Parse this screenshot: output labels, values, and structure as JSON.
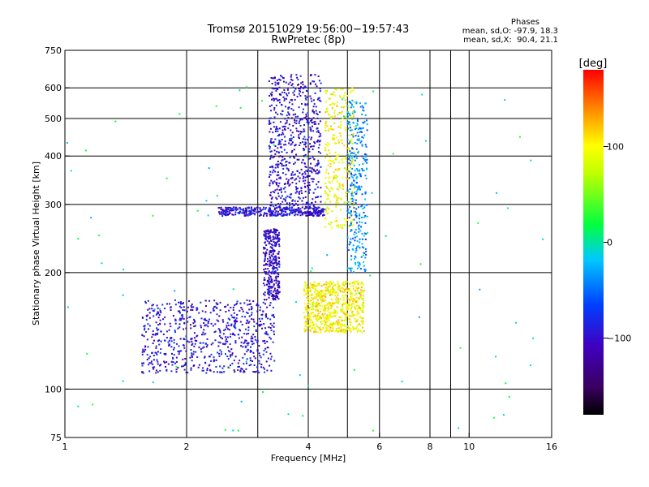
{
  "chart_data": {
    "type": "scatter",
    "title": "Tromsø 20151029 19:56:00−19:57:43",
    "subtitle": "RwPretec (8p)",
    "xlabel": "Frequency [MHz]",
    "ylabel": "Stationary phase Virtual Height [km]",
    "x_scale": "log",
    "y_scale": "log",
    "xlim": [
      1,
      16
    ],
    "ylim": [
      75,
      750
    ],
    "x_ticks": [
      1,
      2,
      4,
      6,
      8,
      10,
      16
    ],
    "x_tick_labels": [
      "1",
      "2",
      "4",
      "6",
      "8",
      "10",
      "16"
    ],
    "x_grid": [
      1,
      2,
      3,
      4,
      5,
      6,
      8,
      9,
      10
    ],
    "y_ticks": [
      75,
      100,
      200,
      300,
      400,
      500,
      600,
      750
    ],
    "y_tick_labels": [
      "75",
      "100",
      "200",
      "300",
      "400",
      "500",
      "600",
      "750"
    ],
    "y_grid": [
      100,
      200,
      300,
      400,
      500,
      600
    ],
    "grid": true,
    "legend_title": "Phases",
    "legend_placement": "top-right",
    "phase_o": "mean, sd,O: -97.9, 18.3",
    "phase_x": "mean, sd,X:  90.4, 21.1",
    "colorbar": {
      "label": "[deg]",
      "range": [
        -180,
        180
      ],
      "ticks": [
        100,
        0,
        -100
      ],
      "tick_labels": [
        "100",
        "0",
        "−100"
      ],
      "colormap": "rainbow: black at -180, purple, blue, cyan, green, yellow, orange, red at +180"
    },
    "clusters": [
      {
        "name": "O-mode lower trace",
        "f": [
          1.55,
          3.3
        ],
        "h": [
          110,
          170
        ],
        "phase": -95,
        "density": "high"
      },
      {
        "name": "O-mode steep rise to F",
        "f": [
          3.1,
          3.4
        ],
        "h": [
          170,
          260
        ],
        "phase": -105,
        "density": "medium"
      },
      {
        "name": "O-mode F trace",
        "f": [
          3.2,
          4.3
        ],
        "h": [
          280,
          650
        ],
        "phase": -100,
        "density": "high"
      },
      {
        "name": "F-layer floor ~290 km",
        "f": [
          2.4,
          4.4
        ],
        "h": [
          280,
          295
        ],
        "phase": -95,
        "density": "medium"
      },
      {
        "name": "X-mode lower trace",
        "f": [
          3.9,
          5.5
        ],
        "h": [
          140,
          190
        ],
        "phase": 100,
        "density": "high"
      },
      {
        "name": "X-mode F trace",
        "f": [
          4.4,
          5.2
        ],
        "h": [
          260,
          600
        ],
        "phase": 95,
        "density": "medium"
      },
      {
        "name": "Mixed F upper",
        "f": [
          5.0,
          5.6
        ],
        "h": [
          200,
          560
        ],
        "phase": -40,
        "density": "medium"
      },
      {
        "name": "Scattered noise",
        "f": [
          1.0,
          15.5
        ],
        "h": [
          78,
          640
        ],
        "phase": 0,
        "density": "low"
      }
    ]
  }
}
